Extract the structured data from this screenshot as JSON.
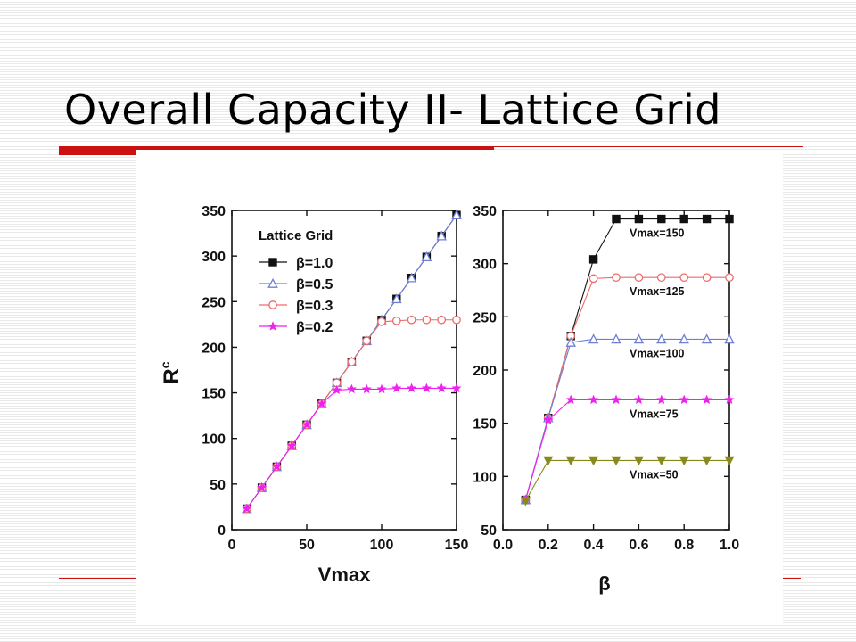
{
  "slide": {
    "title": "Overall Capacity II- Lattice Grid"
  },
  "colors": {
    "accent_bar": "#cc1111",
    "beta_1_0": "#111111",
    "beta_0_5": "#6f7fd6",
    "beta_0_3": "#ee6a6a",
    "beta_0_2": "#ee22ee",
    "vmax_50": "#8a8a1a"
  },
  "chart_data": [
    {
      "type": "line",
      "xlabel": "Vmax",
      "ylabel": "Rc",
      "xlim": [
        0,
        150
      ],
      "ylim": [
        0,
        350
      ],
      "x_ticks": [
        0,
        50,
        100,
        150
      ],
      "y_ticks": [
        0,
        50,
        100,
        150,
        200,
        250,
        300,
        350
      ],
      "grid": false,
      "legend": {
        "title": "Lattice Grid",
        "placement": "top-left"
      },
      "series": [
        {
          "name": "β=1.0",
          "marker": "square",
          "color": "#111111",
          "x": [
            10,
            20,
            30,
            40,
            50,
            60,
            70,
            80,
            90,
            100,
            110,
            120,
            130,
            140,
            150
          ],
          "y": [
            23,
            46,
            69,
            92,
            115,
            138,
            161,
            184,
            207,
            230,
            253,
            276,
            299,
            322,
            345
          ]
        },
        {
          "name": "β=0.5",
          "marker": "triangle",
          "color": "#6f7fd6",
          "x": [
            10,
            20,
            30,
            40,
            50,
            60,
            70,
            80,
            90,
            100,
            110,
            120,
            130,
            140,
            150
          ],
          "y": [
            23,
            46,
            69,
            92,
            115,
            138,
            161,
            184,
            207,
            230,
            253,
            276,
            299,
            322,
            345
          ]
        },
        {
          "name": "β=0.3",
          "marker": "circle",
          "color": "#ee6a6a",
          "x": [
            10,
            20,
            30,
            40,
            50,
            60,
            70,
            80,
            90,
            100,
            110,
            120,
            130,
            140,
            150
          ],
          "y": [
            23,
            46,
            69,
            92,
            115,
            138,
            161,
            184,
            207,
            228,
            229,
            230,
            230,
            230,
            230
          ]
        },
        {
          "name": "β=0.2",
          "marker": "star",
          "color": "#ee22ee",
          "x": [
            10,
            20,
            30,
            40,
            50,
            60,
            70,
            80,
            90,
            100,
            110,
            120,
            130,
            140,
            150
          ],
          "y": [
            23,
            46,
            69,
            92,
            115,
            138,
            153,
            154,
            154,
            154,
            155,
            155,
            155,
            155,
            155
          ]
        }
      ]
    },
    {
      "type": "line",
      "xlabel": "β",
      "ylabel": "",
      "xlim": [
        0.0,
        1.0
      ],
      "ylim": [
        50,
        350
      ],
      "x_ticks": [
        0.0,
        0.2,
        0.4,
        0.6,
        0.8,
        1.0
      ],
      "y_ticks": [
        50,
        100,
        150,
        200,
        250,
        300,
        350
      ],
      "grid": false,
      "series": [
        {
          "name": "Vmax=150",
          "marker": "square",
          "color": "#111111",
          "x": [
            0.1,
            0.2,
            0.3,
            0.4,
            0.5,
            0.6,
            0.7,
            0.8,
            0.9,
            1.0
          ],
          "y": [
            78,
            155,
            232,
            304,
            342,
            342,
            342,
            342,
            342,
            342
          ]
        },
        {
          "name": "Vmax=125",
          "marker": "circle",
          "color": "#ee6a6a",
          "x": [
            0.1,
            0.2,
            0.3,
            0.4,
            0.5,
            0.6,
            0.7,
            0.8,
            0.9,
            1.0
          ],
          "y": [
            78,
            155,
            232,
            286,
            287,
            287,
            287,
            287,
            287,
            287
          ]
        },
        {
          "name": "Vmax=100",
          "marker": "triangle",
          "color": "#6f7fd6",
          "x": [
            0.1,
            0.2,
            0.3,
            0.4,
            0.5,
            0.6,
            0.7,
            0.8,
            0.9,
            1.0
          ],
          "y": [
            78,
            155,
            226,
            229,
            229,
            229,
            229,
            229,
            229,
            229
          ]
        },
        {
          "name": "Vmax=75",
          "marker": "star",
          "color": "#ee22ee",
          "x": [
            0.1,
            0.2,
            0.3,
            0.4,
            0.5,
            0.6,
            0.7,
            0.8,
            0.9,
            1.0
          ],
          "y": [
            78,
            153,
            172,
            172,
            172,
            172,
            172,
            172,
            172,
            172
          ]
        },
        {
          "name": "Vmax=50",
          "marker": "triangle-down",
          "color": "#8a8a1a",
          "x": [
            0.1,
            0.2,
            0.3,
            0.4,
            0.5,
            0.6,
            0.7,
            0.8,
            0.9,
            1.0
          ],
          "y": [
            77,
            115,
            115,
            115,
            115,
            115,
            115,
            115,
            115,
            115
          ]
        }
      ]
    }
  ]
}
